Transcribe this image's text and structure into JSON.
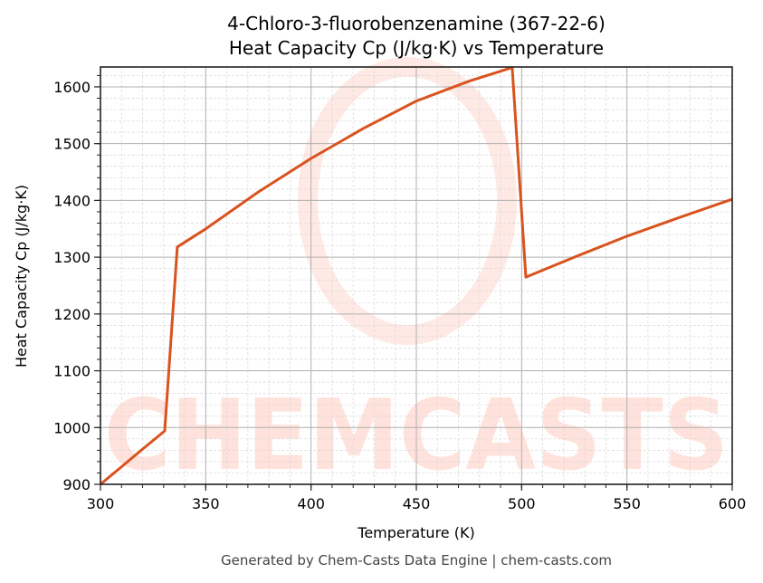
{
  "chart_data": {
    "type": "line",
    "title": "4-Chloro-3-fluorobenzenamine (367-22-6)",
    "subtitle": "Heat Capacity Cp (J/kg·K) vs Temperature",
    "xlabel": "Temperature (K)",
    "ylabel": "Heat Capacity Cp (J/kg·K)",
    "xlim": [
      300,
      600
    ],
    "ylim": [
      900,
      1635
    ],
    "xticks": [
      300,
      350,
      400,
      450,
      500,
      550,
      600
    ],
    "yticks": [
      900,
      1000,
      1100,
      1200,
      1300,
      1400,
      1500,
      1600
    ],
    "x_minor_step": 10,
    "y_minor_step": 20,
    "grid": true,
    "legend": null,
    "series": [
      {
        "name": "Cp",
        "color": "#d9531e",
        "x": [
          300,
          310,
          320,
          330.5,
          336.5,
          350,
          375,
          400,
          425,
          450,
          475,
          495.5,
          502,
          525,
          550,
          575,
          600
        ],
        "y": [
          900,
          931,
          962,
          994,
          1318,
          1350,
          1415,
          1474,
          1527,
          1575,
          1610,
          1634,
          1265,
          1300,
          1337,
          1370,
          1402
        ]
      }
    ]
  },
  "footer": "Generated by Chem-Casts Data Engine | chem-casts.com",
  "watermark": "CHEMCASTS"
}
